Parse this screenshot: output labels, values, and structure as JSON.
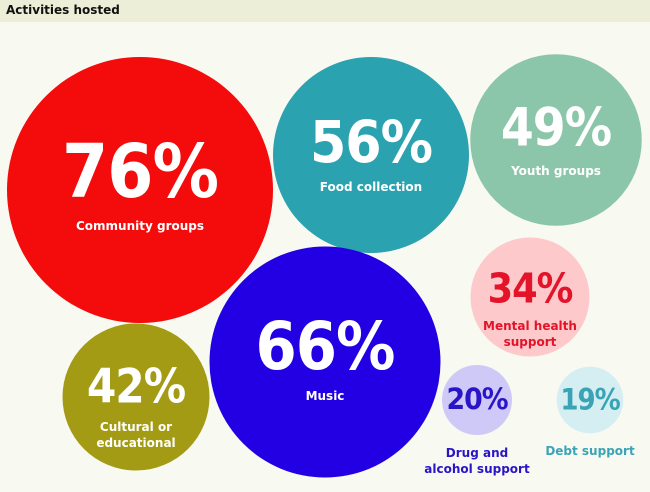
{
  "chart_data": {
    "type": "bubble",
    "title": "Activities hosted",
    "categories": [
      "Community groups",
      "Food collection",
      "Youth groups",
      "Mental health support",
      "Music",
      "Cultural or educational",
      "Drug and alcohol support",
      "Debt support"
    ],
    "values": [
      76,
      56,
      49,
      34,
      66,
      42,
      20,
      19
    ],
    "value_labels": [
      "76%",
      "56%",
      "49%",
      "34%",
      "66%",
      "42%",
      "20%",
      "19%"
    ],
    "colors": [
      "#f40b0b",
      "#2aa2b0",
      "#8cc6aa",
      "#fdc9cb",
      "#2200e3",
      "#a39b14",
      "#cfc9f7",
      "#d4eef2"
    ],
    "label_colors": [
      "#ffffff",
      "#ffffff",
      "#ffffff",
      "#e3132a",
      "#ffffff",
      "#ffffff",
      "#2a14c8",
      "#3aa4b6"
    ]
  }
}
